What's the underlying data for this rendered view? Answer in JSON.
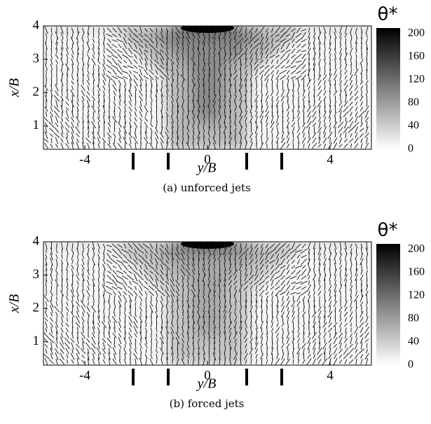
{
  "chart_data": [
    {
      "type": "heatmap",
      "caption": "(a) unforced jets",
      "xlabel": "y/B",
      "ylabel": "x/B",
      "xlim": [
        -5.35,
        5.35
      ],
      "xticks": [
        -4,
        0,
        4
      ],
      "ylim": [
        0.3,
        4.0
      ],
      "yticks": [
        1,
        2,
        3,
        4
      ],
      "colorbar_label": "θ*",
      "clim": [
        0,
        200
      ],
      "colorbar_ticks": [
        0,
        40,
        80,
        120,
        160,
        200
      ]
    },
    {
      "type": "heatmap",
      "caption": "(b) forced jets",
      "xlabel": "y/B",
      "ylabel": "x/B",
      "xlim": [
        -5.35,
        5.35
      ],
      "xticks": [
        -4,
        0,
        4
      ],
      "ylim": [
        0.3,
        4.0
      ],
      "yticks": [
        1,
        2,
        3,
        4
      ],
      "colorbar_label": "θ*",
      "clim": [
        0,
        200
      ],
      "colorbar_ticks": [
        0,
        40,
        80,
        120,
        160,
        200
      ]
    }
  ]
}
